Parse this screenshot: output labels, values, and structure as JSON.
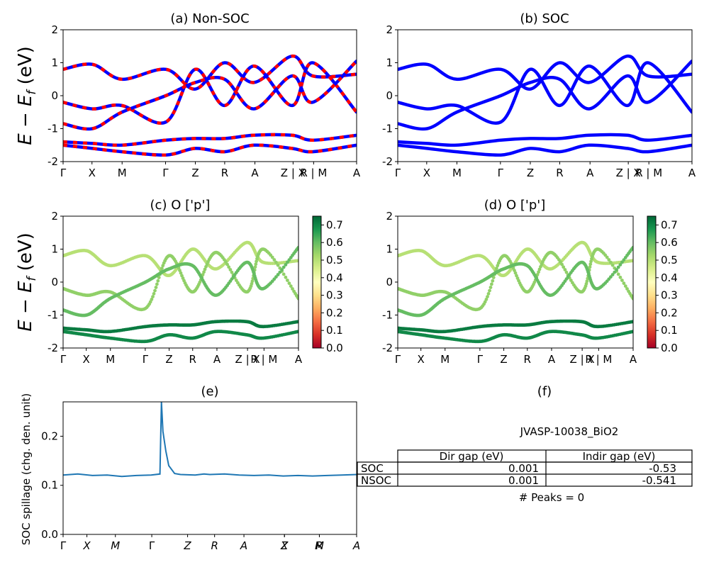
{
  "figure": {
    "ylabel_top": "E − E",
    "ylabel_sub": "f",
    "ylabel_unit": " (eV)"
  },
  "panels": {
    "a": {
      "title": "(a) Non-SOC"
    },
    "b": {
      "title": "(b) SOC"
    },
    "c": {
      "title": "(c)  O ['p']"
    },
    "d": {
      "title": "(d) O ['p']"
    },
    "e": {
      "title": "(e)",
      "ylabel": "SOC spillage (chg. den. unit)"
    },
    "f": {
      "title": "(f)"
    }
  },
  "colors": {
    "nonsoc_a": "#ff0000",
    "nonsoc_b": "#0000ff",
    "soc": "#0000ff",
    "spillage": "#1f77b4",
    "cmap": [
      "#a50026",
      "#d73027",
      "#f46d43",
      "#fdae61",
      "#fee08b",
      "#ffffbf",
      "#d9ef8b",
      "#a6d96a",
      "#66bd63",
      "#1a9850",
      "#006837"
    ]
  },
  "kpath": {
    "labels": [
      "Γ",
      "X",
      "M",
      "Γ",
      "Z",
      "R",
      "A",
      "Z | X",
      "R | M",
      "A"
    ],
    "positions": [
      0,
      0.0984,
      0.201,
      0.349,
      0.4505,
      0.5505,
      0.6535,
      0.7835,
      0.8535,
      1.0
    ]
  },
  "spillage_ticks": {
    "labels": [
      "Γ",
      "X",
      "M",
      "Γ",
      "Z",
      "R",
      "A",
      "Z",
      "X",
      "R",
      "M",
      "A"
    ],
    "positions": [
      0,
      0.0811,
      0.1781,
      0.3021,
      0.4241,
      0.5161,
      0.6161,
      0.7541,
      0.7541,
      0.8731,
      0.8731,
      1.0
    ]
  },
  "colorbar": {
    "ticks": [
      "0.0",
      "0.1",
      "0.2",
      "0.3",
      "0.4",
      "0.5",
      "0.6",
      "0.7"
    ],
    "range": [
      0,
      0.75
    ]
  },
  "info": {
    "material": "JVASP-10038_BiO2",
    "table": {
      "headers": [
        "Dir gap (eV)",
        "Indir gap (eV)"
      ],
      "rows": [
        {
          "label": "SOC",
          "dir": "0.001",
          "indir": "-0.53"
        },
        {
          "label": "NSOC",
          "dir": "0.001",
          "indir": "-0.541"
        }
      ]
    },
    "peaks": "# Peaks = 0"
  },
  "chart_data": [
    {
      "type": "line",
      "title": "(a) Non-SOC",
      "ylabel": "E − Ef (eV)",
      "ylim": [
        -2,
        2
      ],
      "yticks": [
        -2,
        -1,
        0,
        1,
        2
      ],
      "series": [
        {
          "x": [
            0,
            0.1,
            0.2,
            0.35,
            0.45,
            0.55,
            0.65,
            0.78,
            0.85,
            1.0
          ],
          "values": [
            0.8,
            0.95,
            0.5,
            0.8,
            0.2,
            1.0,
            0.4,
            1.2,
            0.6,
            0.65
          ]
        },
        {
          "x": [
            0,
            0.1,
            0.2,
            0.35,
            0.45,
            0.55,
            0.65,
            0.78,
            0.85,
            1.0
          ],
          "values": [
            -0.2,
            -0.4,
            -0.3,
            -0.8,
            0.8,
            -0.3,
            0.9,
            -0.3,
            1.0,
            -0.5
          ]
        },
        {
          "x": [
            0,
            0.1,
            0.2,
            0.35,
            0.45,
            0.55,
            0.65,
            0.78,
            0.85,
            1.0
          ],
          "values": [
            -0.85,
            -1.0,
            -0.5,
            0.0,
            0.4,
            0.5,
            -0.4,
            0.6,
            -0.2,
            1.05
          ]
        },
        {
          "x": [
            0,
            0.1,
            0.2,
            0.35,
            0.45,
            0.55,
            0.65,
            0.78,
            0.85,
            1.0
          ],
          "values": [
            -1.4,
            -1.45,
            -1.5,
            -1.35,
            -1.3,
            -1.3,
            -1.2,
            -1.2,
            -1.35,
            -1.2
          ]
        },
        {
          "x": [
            0,
            0.1,
            0.2,
            0.35,
            0.45,
            0.55,
            0.65,
            0.78,
            0.85,
            1.0
          ],
          "values": [
            -1.5,
            -1.6,
            -1.7,
            -1.8,
            -1.6,
            -1.7,
            -1.5,
            -1.6,
            -1.7,
            -1.5
          ]
        }
      ]
    },
    {
      "type": "line",
      "title": "(b) SOC",
      "ylim": [
        -2,
        2
      ],
      "yticks": [
        -2,
        -1,
        0,
        1,
        2
      ],
      "series": [
        {
          "x": [
            0,
            0.1,
            0.2,
            0.35,
            0.45,
            0.55,
            0.65,
            0.78,
            0.85,
            1.0
          ],
          "values": [
            0.8,
            0.95,
            0.5,
            0.8,
            0.2,
            1.0,
            0.4,
            1.2,
            0.6,
            0.65
          ]
        },
        {
          "x": [
            0,
            0.1,
            0.2,
            0.35,
            0.45,
            0.55,
            0.65,
            0.78,
            0.85,
            1.0
          ],
          "values": [
            -0.2,
            -0.4,
            -0.3,
            -0.8,
            0.8,
            -0.3,
            0.9,
            -0.3,
            1.0,
            -0.5
          ]
        },
        {
          "x": [
            0,
            0.1,
            0.2,
            0.35,
            0.45,
            0.55,
            0.65,
            0.78,
            0.85,
            1.0
          ],
          "values": [
            -0.85,
            -1.0,
            -0.5,
            0.0,
            0.4,
            0.5,
            -0.4,
            0.6,
            -0.2,
            1.05
          ]
        },
        {
          "x": [
            0,
            0.1,
            0.2,
            0.35,
            0.45,
            0.55,
            0.65,
            0.78,
            0.85,
            1.0
          ],
          "values": [
            -1.4,
            -1.45,
            -1.5,
            -1.35,
            -1.3,
            -1.3,
            -1.2,
            -1.2,
            -1.35,
            -1.2
          ]
        },
        {
          "x": [
            0,
            0.1,
            0.2,
            0.35,
            0.45,
            0.55,
            0.65,
            0.78,
            0.85,
            1.0
          ],
          "values": [
            -1.5,
            -1.6,
            -1.7,
            -1.8,
            -1.6,
            -1.7,
            -1.5,
            -1.6,
            -1.7,
            -1.5
          ]
        }
      ]
    },
    {
      "type": "scatter",
      "title": "(c)  O ['p']",
      "ylim": [
        -2,
        2
      ],
      "colorbar_range": [
        0,
        0.75
      ],
      "series": [
        {
          "x": [
            0,
            0.1,
            0.2,
            0.35,
            0.45,
            0.55,
            0.65,
            0.78,
            0.85,
            1.0
          ],
          "values": [
            0.8,
            0.95,
            0.5,
            0.8,
            0.2,
            1.0,
            0.4,
            1.2,
            0.6,
            0.65
          ],
          "weight": 0.5
        },
        {
          "x": [
            0,
            0.1,
            0.2,
            0.35,
            0.45,
            0.55,
            0.65,
            0.78,
            0.85,
            1.0
          ],
          "values": [
            -0.2,
            -0.4,
            -0.3,
            -0.8,
            0.8,
            -0.3,
            0.9,
            -0.3,
            1.0,
            -0.5
          ],
          "weight": 0.55
        },
        {
          "x": [
            0,
            0.1,
            0.2,
            0.35,
            0.45,
            0.55,
            0.65,
            0.78,
            0.85,
            1.0
          ],
          "values": [
            -0.85,
            -1.0,
            -0.5,
            0.0,
            0.4,
            0.5,
            -0.4,
            0.6,
            -0.2,
            1.05
          ],
          "weight": 0.6
        },
        {
          "x": [
            0,
            0.1,
            0.2,
            0.35,
            0.45,
            0.55,
            0.65,
            0.78,
            0.85,
            1.0
          ],
          "values": [
            -1.4,
            -1.45,
            -1.5,
            -1.35,
            -1.3,
            -1.3,
            -1.2,
            -1.2,
            -1.35,
            -1.2
          ],
          "weight": 0.72
        },
        {
          "x": [
            0,
            0.1,
            0.2,
            0.35,
            0.45,
            0.55,
            0.65,
            0.78,
            0.85,
            1.0
          ],
          "values": [
            -1.5,
            -1.6,
            -1.7,
            -1.8,
            -1.6,
            -1.7,
            -1.5,
            -1.6,
            -1.7,
            -1.5
          ],
          "weight": 0.7
        }
      ]
    },
    {
      "type": "scatter",
      "title": "(d) O ['p']",
      "ylim": [
        -2,
        2
      ],
      "colorbar_range": [
        0,
        0.75
      ],
      "series": [
        {
          "x": [
            0,
            0.1,
            0.2,
            0.35,
            0.45,
            0.55,
            0.65,
            0.78,
            0.85,
            1.0
          ],
          "values": [
            0.8,
            0.95,
            0.5,
            0.8,
            0.2,
            1.0,
            0.4,
            1.2,
            0.6,
            0.65
          ],
          "weight": 0.5
        },
        {
          "x": [
            0,
            0.1,
            0.2,
            0.35,
            0.45,
            0.55,
            0.65,
            0.78,
            0.85,
            1.0
          ],
          "values": [
            -0.2,
            -0.4,
            -0.3,
            -0.8,
            0.8,
            -0.3,
            0.9,
            -0.3,
            1.0,
            -0.5
          ],
          "weight": 0.55
        },
        {
          "x": [
            0,
            0.1,
            0.2,
            0.35,
            0.45,
            0.55,
            0.65,
            0.78,
            0.85,
            1.0
          ],
          "values": [
            -0.85,
            -1.0,
            -0.5,
            0.0,
            0.4,
            0.5,
            -0.4,
            0.6,
            -0.2,
            1.05
          ],
          "weight": 0.6
        },
        {
          "x": [
            0,
            0.1,
            0.2,
            0.35,
            0.45,
            0.55,
            0.65,
            0.78,
            0.85,
            1.0
          ],
          "values": [
            -1.4,
            -1.45,
            -1.5,
            -1.35,
            -1.3,
            -1.3,
            -1.2,
            -1.2,
            -1.35,
            -1.2
          ],
          "weight": 0.72
        },
        {
          "x": [
            0,
            0.1,
            0.2,
            0.35,
            0.45,
            0.55,
            0.65,
            0.78,
            0.85,
            1.0
          ],
          "values": [
            -1.5,
            -1.6,
            -1.7,
            -1.8,
            -1.6,
            -1.7,
            -1.5,
            -1.6,
            -1.7,
            -1.5
          ],
          "weight": 0.7
        }
      ]
    },
    {
      "type": "line",
      "title": "(e)",
      "ylabel": "SOC spillage (chg. den. unit)",
      "ylim": [
        0,
        0.27
      ],
      "yticks": [
        0.0,
        0.1,
        0.2
      ],
      "x": [
        0,
        0.05,
        0.1,
        0.15,
        0.2,
        0.25,
        0.3,
        0.33,
        0.335,
        0.34,
        0.35,
        0.36,
        0.38,
        0.4,
        0.45,
        0.48,
        0.5,
        0.55,
        0.6,
        0.65,
        0.7,
        0.75,
        0.8,
        0.85,
        0.9,
        0.95,
        1.0
      ],
      "values": [
        0.121,
        0.123,
        0.12,
        0.121,
        0.118,
        0.12,
        0.121,
        0.123,
        0.27,
        0.21,
        0.17,
        0.14,
        0.124,
        0.122,
        0.121,
        0.123,
        0.122,
        0.123,
        0.121,
        0.12,
        0.121,
        0.119,
        0.12,
        0.119,
        0.12,
        0.121,
        0.122
      ]
    }
  ]
}
